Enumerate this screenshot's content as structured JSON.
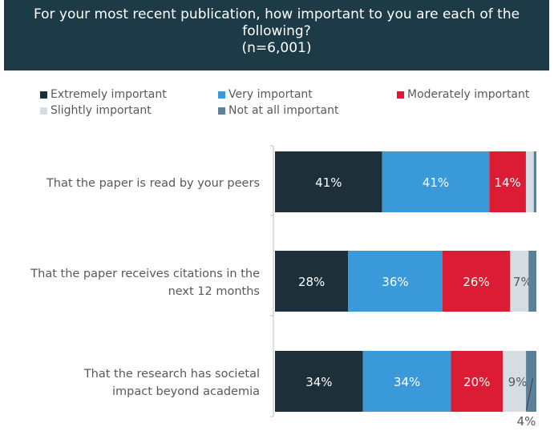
{
  "title": {
    "line1": "For your most recent publication, how important to you are each of the",
    "line2": "following?",
    "line3": "(n=6,001)"
  },
  "colors": {
    "extremely": "#1d2f38",
    "very": "#3a9ad9",
    "moderately": "#dc1c35",
    "slightly": "#d5dde2",
    "not_at_all": "#5b809a"
  },
  "chart_data": {
    "type": "bar",
    "orientation": "horizontal",
    "stacked": true,
    "categories": [
      [
        "That the paper is read by your peers"
      ],
      [
        "That the paper receives citations in the",
        "next 12 months"
      ],
      [
        "That the research has societal",
        "impact beyond academia"
      ]
    ],
    "series": [
      {
        "name": "Extremely important",
        "values": [
          41,
          28,
          34
        ],
        "labels": [
          "41%",
          "28%",
          "34%"
        ]
      },
      {
        "name": "Very important",
        "values": [
          41,
          36,
          34
        ],
        "labels": [
          "41%",
          "36%",
          "34%"
        ]
      },
      {
        "name": "Moderately important",
        "values": [
          14,
          26,
          20
        ],
        "labels": [
          "14%",
          "26%",
          "20%"
        ]
      },
      {
        "name": "Slightly important",
        "values": [
          3,
          7,
          9
        ],
        "labels": [
          "",
          "7%",
          "9%"
        ]
      },
      {
        "name": "Not at all important",
        "values": [
          1,
          3,
          4
        ],
        "labels": [
          "",
          "",
          "4%"
        ]
      }
    ],
    "legend_position": "top",
    "grid": false
  }
}
